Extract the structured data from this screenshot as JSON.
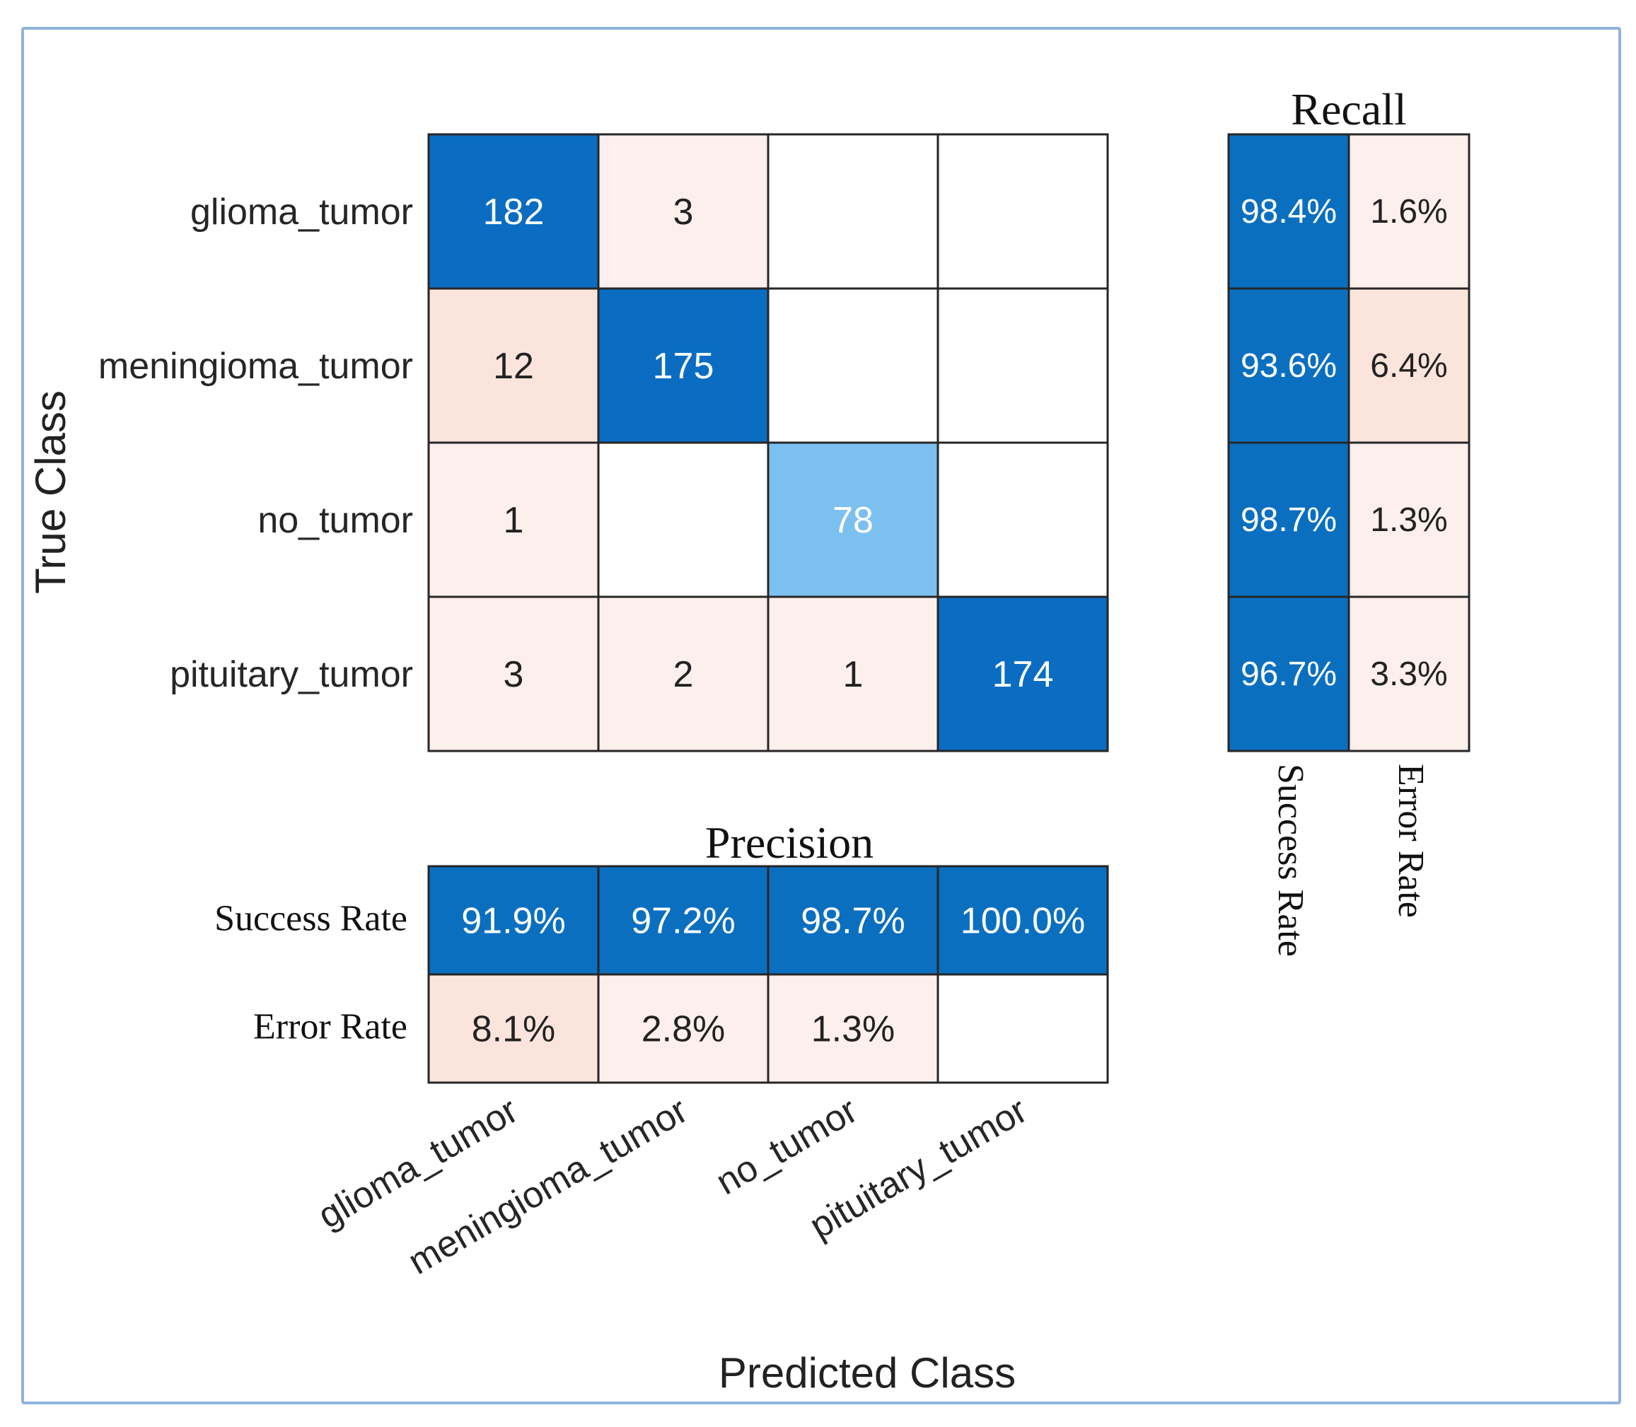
{
  "chart_data": {
    "type": "heatmap",
    "kind": "confusion_matrix",
    "classes": [
      "glioma_tumor",
      "meningioma_tumor",
      "no_tumor",
      "pituitary_tumor"
    ],
    "matrix": [
      [
        182,
        3,
        0,
        0
      ],
      [
        12,
        175,
        0,
        0
      ],
      [
        1,
        0,
        78,
        0
      ],
      [
        3,
        2,
        1,
        174
      ]
    ],
    "ylabel": "True Class",
    "xlabel": "Predicted Class",
    "precision": {
      "title": "Precision",
      "row_labels": [
        "Success Rate",
        "Error Rate"
      ],
      "success": [
        "91.9%",
        "97.2%",
        "98.7%",
        "100.0%"
      ],
      "error": [
        "8.1%",
        "2.8%",
        "1.3%",
        ""
      ],
      "success_values": [
        91.9,
        97.2,
        98.7,
        100.0
      ],
      "error_values": [
        8.1,
        2.8,
        1.3,
        0.0
      ]
    },
    "recall": {
      "title": "Recall",
      "col_labels": [
        "Success Rate",
        "Error Rate"
      ],
      "success": [
        "98.4%",
        "93.6%",
        "98.7%",
        "96.7%"
      ],
      "error": [
        "1.6%",
        "6.4%",
        "1.3%",
        "3.3%"
      ],
      "success_values": [
        98.4,
        93.6,
        98.7,
        96.7
      ],
      "error_values": [
        1.6,
        6.4,
        1.3,
        3.3
      ]
    },
    "colors": {
      "diag_strong": "#0a6dc2",
      "diag_light": "#7cc0f0",
      "summary_blue": "#0b6fc0",
      "offdiag_light": "#fdf0ec",
      "offdiag_medium": "#fbe4dc",
      "empty": "#ffffff",
      "grid": "#262626",
      "frame": "#8fb3dc"
    }
  }
}
